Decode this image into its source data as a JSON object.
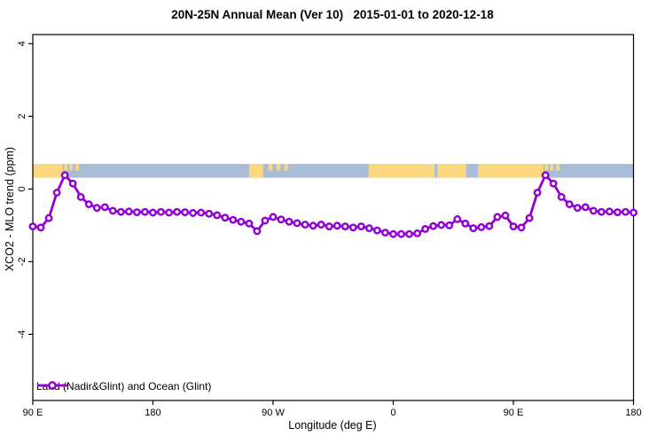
{
  "title": "20N-25N Annual Mean (Ver 10)   2015-01-01 to 2020-12-18",
  "axes": {
    "x_label": "Longitude (deg E)",
    "y_label": "XCO2 - MLO trend (ppm)"
  },
  "legend": {
    "label": "Land (Nadir&Glint) and Ocean (Glint)",
    "position": "bottom-left-inside"
  },
  "colors": {
    "series": "#9400D3",
    "marker_fill": "#ffffff",
    "band_ocean": "#a9bdd8",
    "band_land": "#fbd87f",
    "axis": "#000000",
    "background": "#ffffff"
  },
  "chart_data": {
    "type": "line",
    "title": "20N-25N Annual Mean (Ver 10)   2015-01-01 to 2020-12-18",
    "xlabel": "Longitude (deg E)",
    "ylabel": "XCO2 - MLO trend (ppm)",
    "grid": false,
    "x_axis_wraps_globe": true,
    "x_range_axis_deg": [
      90,
      540
    ],
    "y_range": [
      -5.82,
      4.25
    ],
    "x_ticks": [
      {
        "deg": 90,
        "label": "90 E"
      },
      {
        "deg": 180,
        "label": "180"
      },
      {
        "deg": 270,
        "label": "90 W"
      },
      {
        "deg": 360,
        "label": "0"
      },
      {
        "deg": 450,
        "label": "90 E"
      },
      {
        "deg": 540,
        "label": "180"
      }
    ],
    "y_ticks": [
      {
        "value": 4,
        "label": "4"
      },
      {
        "value": 2,
        "label": "2"
      },
      {
        "value": 0,
        "label": "0"
      },
      {
        "value": -2,
        "label": "-2"
      },
      {
        "value": -4,
        "label": "-4"
      }
    ],
    "series": [
      {
        "name": "Land (Nadir&Glint) and Ocean (Glint)",
        "color": "#9400D3",
        "marker": "open-circle",
        "x_axis_deg": [
          90,
          96,
          102,
          108,
          114,
          120,
          126,
          132,
          138,
          144,
          150,
          156,
          162,
          168,
          174,
          180,
          186,
          192,
          198,
          204,
          210,
          216,
          222,
          228,
          234,
          240,
          246,
          252,
          258,
          264,
          270,
          276,
          282,
          288,
          294,
          300,
          306,
          312,
          318,
          324,
          330,
          336,
          342,
          348,
          354,
          360,
          366,
          372,
          378,
          384,
          390,
          396,
          402,
          408,
          414,
          420,
          426,
          432,
          438,
          444,
          450,
          456,
          462,
          468,
          474,
          480,
          486,
          492,
          498,
          504,
          510,
          516,
          522,
          528,
          534,
          540
        ],
        "values": [
          -1.03,
          -1.06,
          -0.8,
          -0.1,
          0.38,
          0.15,
          -0.22,
          -0.42,
          -0.52,
          -0.5,
          -0.6,
          -0.63,
          -0.62,
          -0.64,
          -0.63,
          -0.65,
          -0.63,
          -0.65,
          -0.63,
          -0.64,
          -0.66,
          -0.65,
          -0.68,
          -0.72,
          -0.79,
          -0.85,
          -0.9,
          -0.95,
          -1.16,
          -0.87,
          -0.77,
          -0.84,
          -0.9,
          -0.94,
          -0.98,
          -1.01,
          -0.98,
          -1.03,
          -1.01,
          -1.03,
          -1.06,
          -1.03,
          -1.08,
          -1.14,
          -1.2,
          -1.24,
          -1.24,
          -1.24,
          -1.22,
          -1.1,
          -1.02,
          -0.99,
          -1.0,
          -0.83,
          -0.95,
          -1.08,
          -1.05,
          -1.02,
          -0.77,
          -0.73,
          -1.03,
          -1.06,
          -0.8,
          -0.1,
          0.38,
          0.15,
          -0.22,
          -0.42,
          -0.52,
          -0.5,
          -0.6,
          -0.63,
          -0.62,
          -0.64,
          -0.63,
          -0.65
        ]
      }
    ],
    "map_band": {
      "description": "land/ocean strip for 20N-25N plotted across the longitude axis",
      "value_top": 0.69,
      "value_bottom": 0.31,
      "ocean_color": "#a9bdd8",
      "land_color": "#fbd87f",
      "land_segments_deg": [
        [
          90,
          112.5
        ],
        [
          252,
          262.5
        ],
        [
          341.5,
          391
        ],
        [
          393,
          414.5
        ],
        [
          423.5,
          472.5
        ]
      ],
      "partial_land_segments_deg": [
        [
          113.5,
          116
        ],
        [
          117.5,
          120
        ],
        [
          122,
          124.5
        ],
        [
          266.5,
          269.5
        ],
        [
          272.5,
          275.5
        ],
        [
          278.5,
          281
        ],
        [
          473.5,
          476
        ],
        [
          477.5,
          480
        ],
        [
          482,
          484.5
        ]
      ]
    }
  }
}
